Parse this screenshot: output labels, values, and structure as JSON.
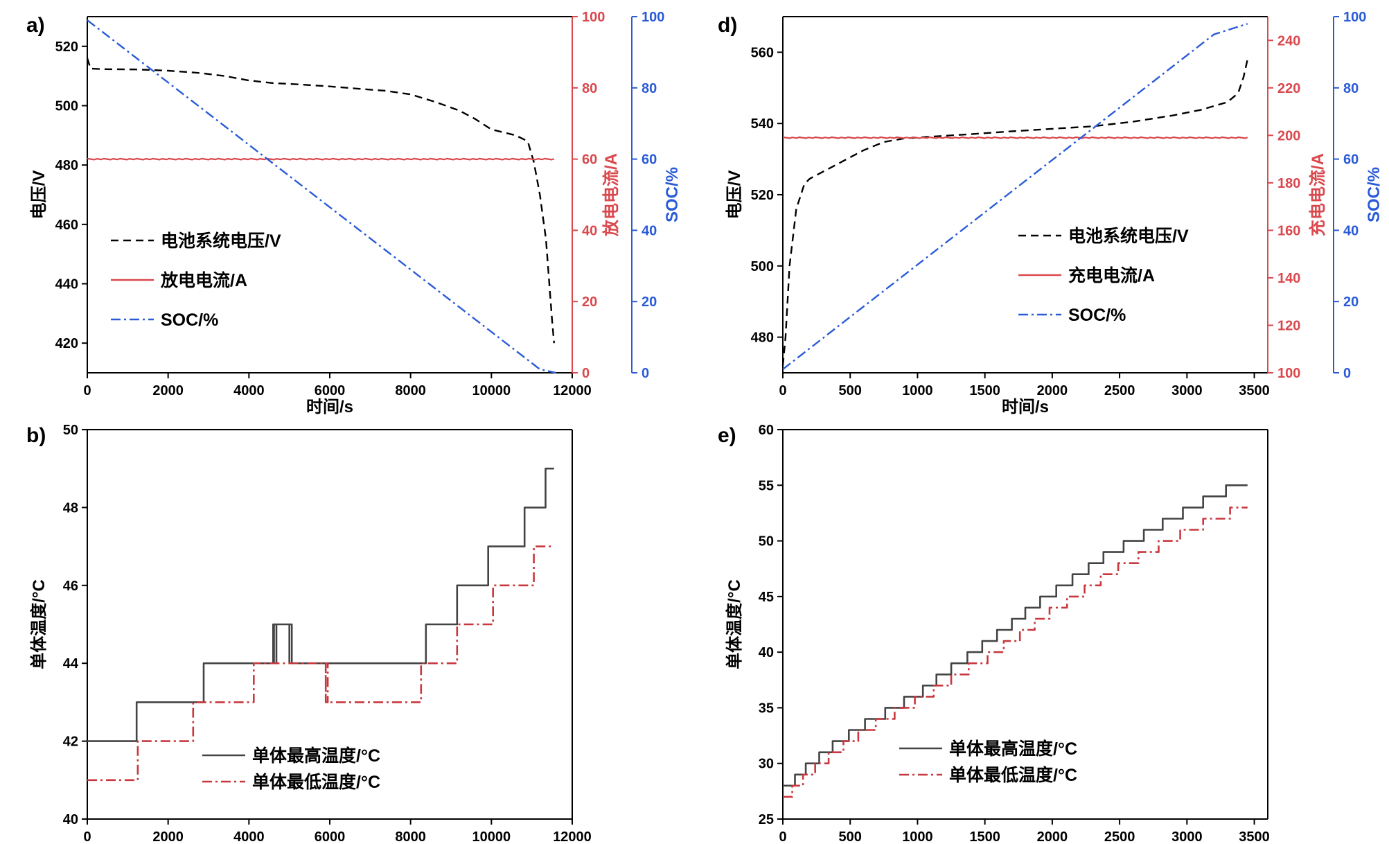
{
  "colors": {
    "axis": "#000000",
    "red": "#d9484d",
    "blue": "#2a5bd7",
    "black_line": "#000000",
    "gray_line": "#444444",
    "darkred_line": "#c8383e"
  },
  "chart_data": [
    {
      "id": "a",
      "panel_label": "a)",
      "type": "line",
      "xlabel": "时间/s",
      "ylabel_left": "电压/V",
      "ylabel_right1": "放电电流/A",
      "ylabel_right2": "SOC/%",
      "xlim": [
        0,
        12000
      ],
      "ylim_left": [
        410,
        530
      ],
      "ylim_right1": [
        0,
        100
      ],
      "ylim_right2": [
        0,
        100
      ],
      "xticks": [
        0,
        2000,
        4000,
        6000,
        8000,
        10000,
        12000
      ],
      "yticks_left": [
        420,
        440,
        460,
        480,
        500,
        520
      ],
      "yticks_right1": [
        0,
        20,
        40,
        60,
        80,
        100
      ],
      "yticks_right2": [
        0,
        20,
        40,
        60,
        80,
        100
      ],
      "legend": [
        "电池系统电压/V",
        "放电电流/A",
        "SOC/%"
      ],
      "series": [
        {
          "name": "电池系统电压/V",
          "axis": "left",
          "style": "dashed",
          "color": "black",
          "x": [
            0,
            80,
            400,
            1200,
            2000,
            2800,
            3400,
            4000,
            4600,
            5200,
            6000,
            6800,
            7400,
            8000,
            8600,
            9200,
            9600,
            10000,
            10600,
            10900,
            11050,
            11200,
            11350,
            11500,
            11550
          ],
          "y": [
            516,
            512.5,
            512.3,
            512.2,
            511.8,
            511,
            510,
            508.5,
            507.6,
            507.2,
            506.5,
            505.6,
            505,
            503.8,
            501.3,
            498.4,
            495.5,
            492,
            490,
            488,
            481,
            470,
            455,
            428,
            420
          ]
        },
        {
          "name": "放电电流/A",
          "axis": "right1",
          "style": "solid",
          "color": "red",
          "x": [
            0,
            11550
          ],
          "y": [
            60,
            60
          ]
        },
        {
          "name": "SOC/%",
          "axis": "right2",
          "style": "dashdot",
          "color": "blue",
          "x": [
            0,
            11200,
            11600
          ],
          "y": [
            99,
            1,
            0
          ]
        }
      ]
    },
    {
      "id": "d",
      "panel_label": "d)",
      "type": "line",
      "xlabel": "时间/s",
      "ylabel_left": "电压/V",
      "ylabel_right1": "充电电流/A",
      "ylabel_right2": "SOC/%",
      "xlim": [
        0,
        3600
      ],
      "ylim_left": [
        470,
        570
      ],
      "ylim_right1": [
        100,
        250
      ],
      "ylim_right2": [
        0,
        100
      ],
      "xticks": [
        0,
        500,
        1000,
        1500,
        2000,
        2500,
        3000,
        3500
      ],
      "yticks_left": [
        480,
        500,
        520,
        540,
        560
      ],
      "yticks_right1": [
        100,
        120,
        140,
        160,
        180,
        200,
        220,
        240
      ],
      "yticks_right2": [
        0,
        20,
        40,
        60,
        80,
        100
      ],
      "legend": [
        "电池系统电压/V",
        "充电电流/A",
        "SOC/%"
      ],
      "series": [
        {
          "name": "电池系统电压/V",
          "axis": "left",
          "style": "dashed",
          "color": "black",
          "x": [
            0,
            20,
            50,
            100,
            160,
            200,
            300,
            450,
            600,
            750,
            900,
            1100,
            1400,
            1700,
            2000,
            2300,
            2600,
            2900,
            3100,
            3300,
            3380,
            3420,
            3450
          ],
          "y": [
            472,
            480,
            500,
            516,
            523,
            524.5,
            526.5,
            529.5,
            532.5,
            534.8,
            535.8,
            536.3,
            537,
            537.8,
            538.5,
            539.2,
            540.5,
            542.3,
            543.8,
            546,
            548.5,
            553,
            558
          ]
        },
        {
          "name": "充电电流/A",
          "axis": "right1",
          "style": "solid",
          "color": "red",
          "x": [
            0,
            3450
          ],
          "y": [
            199,
            199
          ]
        },
        {
          "name": "SOC/%",
          "axis": "right2",
          "style": "dashdot",
          "color": "blue",
          "x": [
            0,
            3200,
            3450
          ],
          "y": [
            1,
            95,
            98
          ]
        }
      ]
    },
    {
      "id": "b",
      "panel_label": "b)",
      "type": "line",
      "xlabel": "",
      "ylabel_left": "单体温度/°C",
      "xlim": [
        0,
        12000
      ],
      "ylim_left": [
        40,
        50
      ],
      "xticks": [
        0,
        2000,
        4000,
        6000,
        8000,
        10000,
        12000
      ],
      "yticks_left": [
        40,
        42,
        44,
        46,
        48,
        50
      ],
      "legend": [
        "单体最高温度/°C",
        "单体最低温度/°C"
      ],
      "series": [
        {
          "name": "单体最高温度/°C",
          "style": "step-solid",
          "color": "gray",
          "x": [
            0,
            1220,
            1220,
            2880,
            2880,
            4600,
            4600,
            4680,
            4680,
            4620,
            4620,
            5000,
            5000,
            5060,
            5060,
            5000,
            5000,
            8380,
            8380,
            9150,
            9150,
            9920,
            9920,
            10820,
            10820,
            11340,
            11340,
            11550
          ],
          "y": [
            42,
            42,
            43,
            43,
            44,
            44,
            45,
            45,
            44,
            44,
            45,
            45,
            44,
            44,
            45,
            45,
            44,
            44,
            45,
            45,
            46,
            46,
            47,
            47,
            48,
            48,
            49,
            49
          ]
        },
        {
          "name": "单体最低温度/°C",
          "style": "step-dashdot",
          "color": "darkred",
          "x": [
            0,
            1250,
            1250,
            2620,
            2620,
            4120,
            4120,
            5900,
            5900,
            5950,
            5950,
            5900,
            5900,
            8260,
            8260,
            9150,
            9150,
            10040,
            10040,
            11050,
            11050,
            11550
          ],
          "y": [
            41,
            41,
            42,
            42,
            43,
            43,
            44,
            44,
            43,
            43,
            44,
            44,
            43,
            43,
            44,
            44,
            45,
            45,
            46,
            46,
            47,
            47
          ]
        }
      ]
    },
    {
      "id": "e",
      "panel_label": "e)",
      "type": "line",
      "xlabel": "",
      "ylabel_left": "单体温度/°C",
      "xlim": [
        0,
        3600
      ],
      "ylim_left": [
        25,
        60
      ],
      "xticks": [
        0,
        500,
        1000,
        1500,
        2000,
        2500,
        3000,
        3500
      ],
      "yticks_left": [
        25,
        30,
        35,
        40,
        45,
        50,
        55,
        60
      ],
      "legend": [
        "单体最高温度/°C",
        "单体最低温度/°C"
      ],
      "series": [
        {
          "name": "单体最高温度/°C",
          "style": "staircase-solid",
          "color": "gray",
          "start": [
            0,
            28
          ],
          "end_x": 3450,
          "step_x": [
            90,
            170,
            270,
            370,
            490,
            610,
            760,
            900,
            1040,
            1140,
            1250,
            1370,
            1480,
            1590,
            1700,
            1800,
            1910,
            2030,
            2150,
            2270,
            2380,
            2530,
            2680,
            2820,
            2970,
            3120,
            3290
          ]
        },
        {
          "name": "单体最低温度/°C",
          "style": "staircase-dashdot",
          "color": "darkred",
          "start": [
            0,
            27
          ],
          "end_x": 3450,
          "step_x": [
            70,
            150,
            240,
            340,
            450,
            560,
            690,
            830,
            980,
            1120,
            1250,
            1380,
            1520,
            1640,
            1760,
            1870,
            1980,
            2110,
            2240,
            2360,
            2490,
            2640,
            2790,
            2950,
            3120,
            3320
          ]
        }
      ]
    }
  ]
}
